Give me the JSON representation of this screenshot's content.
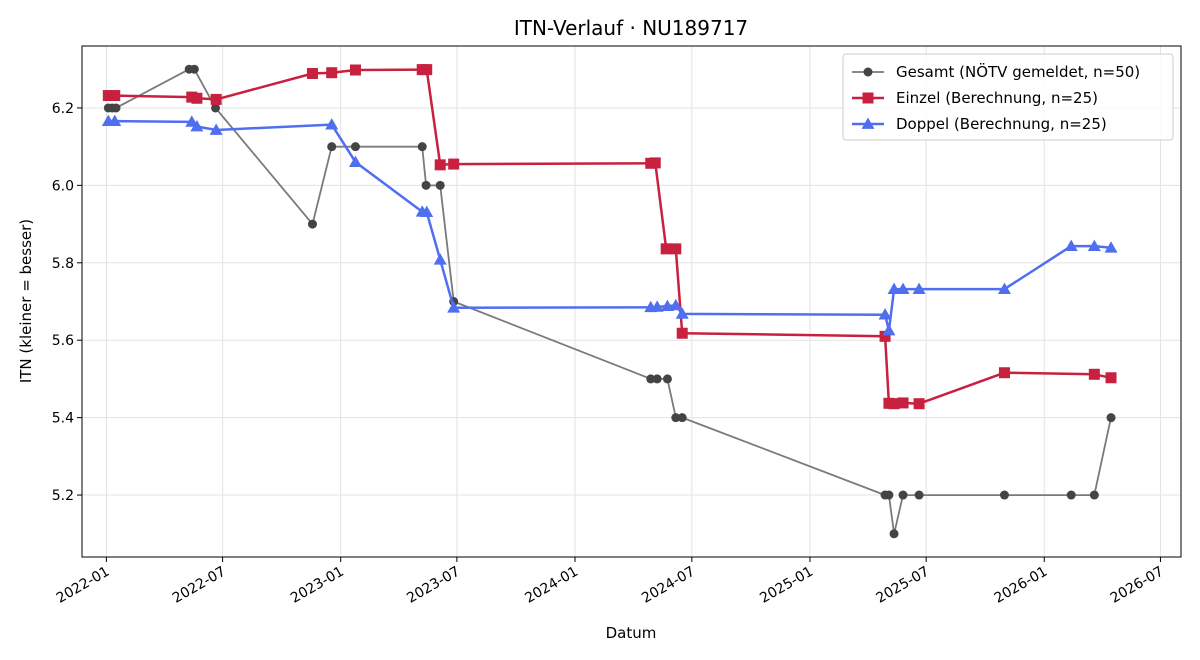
{
  "chart_data": {
    "type": "line",
    "title": "ITN-Verlauf · NU189717",
    "xlabel": "Datum",
    "ylabel": "ITN  (kleiner = besser)",
    "xlim": [
      "2021-11-24",
      "2026-08-02"
    ],
    "ylim": [
      5.04,
      6.36
    ],
    "x_ticks": [
      "2022-01",
      "2022-07",
      "2023-01",
      "2023-07",
      "2024-01",
      "2024-07",
      "2025-01",
      "2025-07",
      "2026-01",
      "2026-07"
    ],
    "y_ticks": [
      5.2,
      5.4,
      5.6,
      5.8,
      6.0,
      6.2
    ],
    "y_tick_labels": [
      "5.2",
      "5.4",
      "5.6",
      "5.8",
      "6.0",
      "6.2"
    ],
    "grid": true,
    "legend_position": "top-right",
    "series": [
      {
        "name": "Gesamt (NÖTV gemeldet, n=50)",
        "color": "#4d4d4d",
        "marker": "circle",
        "points": [
          [
            "2022-01-04",
            6.2
          ],
          [
            "2022-01-10",
            6.2
          ],
          [
            "2022-01-16",
            6.2
          ],
          [
            "2022-05-10",
            6.3
          ],
          [
            "2022-05-18",
            6.3
          ],
          [
            "2022-06-20",
            6.2
          ],
          [
            "2022-11-18",
            5.9
          ],
          [
            "2022-12-18",
            6.1
          ],
          [
            "2023-01-24",
            6.1
          ],
          [
            "2023-05-08",
            6.1
          ],
          [
            "2023-05-14",
            6.0
          ],
          [
            "2023-06-05",
            6.0
          ],
          [
            "2023-06-26",
            5.7
          ],
          [
            "2024-04-28",
            5.5
          ],
          [
            "2024-05-08",
            5.5
          ],
          [
            "2024-05-24",
            5.5
          ],
          [
            "2024-06-06",
            5.4
          ],
          [
            "2024-06-16",
            5.4
          ],
          [
            "2025-04-28",
            5.2
          ],
          [
            "2025-05-04",
            5.2
          ],
          [
            "2025-05-12",
            5.1
          ],
          [
            "2025-05-26",
            5.2
          ],
          [
            "2025-06-20",
            5.2
          ],
          [
            "2025-10-31",
            5.2
          ],
          [
            "2026-02-12",
            5.2
          ],
          [
            "2026-03-20",
            5.2
          ],
          [
            "2026-04-15",
            5.4
          ]
        ]
      },
      {
        "name": "Einzel (Berechnung, n=25)",
        "color": "#c8203f",
        "marker": "square",
        "points": [
          [
            "2022-01-04",
            6.232
          ],
          [
            "2022-01-14",
            6.232
          ],
          [
            "2022-05-14",
            6.228
          ],
          [
            "2022-05-22",
            6.225
          ],
          [
            "2022-06-21",
            6.222
          ],
          [
            "2022-11-18",
            6.289
          ],
          [
            "2022-12-18",
            6.291
          ],
          [
            "2023-01-24",
            6.298
          ],
          [
            "2023-05-08",
            6.299
          ],
          [
            "2023-05-15",
            6.299
          ],
          [
            "2023-06-05",
            6.053
          ],
          [
            "2023-06-26",
            6.055
          ],
          [
            "2024-04-28",
            6.057
          ],
          [
            "2024-05-05",
            6.058
          ],
          [
            "2024-05-22",
            5.836
          ],
          [
            "2024-06-06",
            5.836
          ],
          [
            "2024-06-16",
            5.618
          ],
          [
            "2025-04-28",
            5.61
          ],
          [
            "2025-05-04",
            5.437
          ],
          [
            "2025-05-12",
            5.436
          ],
          [
            "2025-05-26",
            5.438
          ],
          [
            "2025-06-20",
            5.436
          ],
          [
            "2025-10-31",
            5.516
          ],
          [
            "2026-03-20",
            5.512
          ],
          [
            "2026-04-15",
            5.503
          ]
        ]
      },
      {
        "name": "Doppel (Berechnung, n=25)",
        "color": "#4f6ff0",
        "marker": "triangle",
        "points": [
          [
            "2022-01-04",
            6.166
          ],
          [
            "2022-01-14",
            6.166
          ],
          [
            "2022-05-14",
            6.164
          ],
          [
            "2022-05-22",
            6.152
          ],
          [
            "2022-06-21",
            6.143
          ],
          [
            "2022-12-18",
            6.157
          ],
          [
            "2023-01-24",
            6.06
          ],
          [
            "2023-05-08",
            5.932
          ],
          [
            "2023-05-15",
            5.931
          ],
          [
            "2023-06-05",
            5.808
          ],
          [
            "2023-06-26",
            5.684
          ],
          [
            "2024-04-28",
            5.685
          ],
          [
            "2024-05-08",
            5.686
          ],
          [
            "2024-05-24",
            5.688
          ],
          [
            "2024-06-06",
            5.69
          ],
          [
            "2024-06-16",
            5.668
          ],
          [
            "2025-04-28",
            5.666
          ],
          [
            "2025-05-04",
            5.625
          ],
          [
            "2025-05-12",
            5.732
          ],
          [
            "2025-05-26",
            5.732
          ],
          [
            "2025-06-20",
            5.732
          ],
          [
            "2025-10-31",
            5.732
          ],
          [
            "2026-02-12",
            5.843
          ],
          [
            "2026-03-20",
            5.843
          ],
          [
            "2026-04-15",
            5.839
          ]
        ]
      }
    ]
  }
}
